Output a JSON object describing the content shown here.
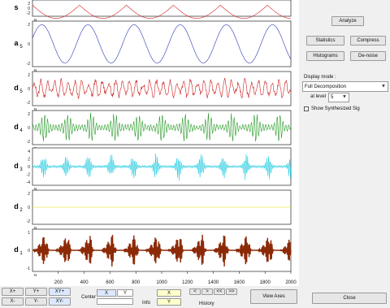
{
  "plots": {
    "rows": [
      {
        "id": "s-top",
        "label": "s",
        "sub": "",
        "color": "#d42020",
        "ticks": [
          "2",
          "0",
          "-2"
        ]
      },
      {
        "id": "a5",
        "label": "a",
        "sub": "5",
        "color": "#2a36b0",
        "ticks": [
          "2",
          "0",
          "-2"
        ]
      },
      {
        "id": "d5",
        "label": "d",
        "sub": "5",
        "color": "#cc2020",
        "ticks": [
          "2",
          "0",
          "-2"
        ]
      },
      {
        "id": "d4",
        "label": "d",
        "sub": "4",
        "color": "#2a9a2a",
        "ticks": [
          "2",
          "0",
          "-2"
        ]
      },
      {
        "id": "d3",
        "label": "d",
        "sub": "3",
        "color": "#22cbe0",
        "ticks": [
          "4",
          "2",
          "0",
          "-2",
          "-4"
        ]
      },
      {
        "id": "d2",
        "label": "d",
        "sub": "2",
        "color": "#e8e400",
        "ticks": [
          "2",
          "0",
          "-2"
        ]
      },
      {
        "id": "d1",
        "label": "d",
        "sub": "1",
        "color": "#8c2a08",
        "ticks": [
          "1",
          "0",
          "-1"
        ]
      }
    ],
    "x_ticks": [
      "200",
      "400",
      "600",
      "800",
      "1000",
      "1200",
      "1400",
      "1600",
      "1800",
      "2000"
    ],
    "row_marker": "N"
  },
  "panel": {
    "analyze_label": "Analyze",
    "statistics_label": "Statistics",
    "compress_label": "Compress",
    "histograms_label": "Histograms",
    "denoise_label": "De-noise",
    "display_mode_label": "Display mode :",
    "display_mode_value": "Full Decomposition",
    "level_label": "at level",
    "level_value": "5",
    "show_synth_label": "Show Synthesized Sig"
  },
  "bottom": {
    "x_plus": "X+",
    "y_plus": "Y+",
    "xy_plus": "XY+",
    "x_minus": "X-",
    "y_minus": "Y-",
    "xy_minus": "XY-",
    "center_label": "Center",
    "x_field": "X",
    "y_field": "Y",
    "info_label": "Info",
    "history_label": "History",
    "view_axes_label": "View Axes",
    "close_label": "Close",
    "arrow_left": "<",
    "arrow_right": ">",
    "arrow_dbl_left": "<<",
    "arrow_dbl_right": ">>"
  }
}
